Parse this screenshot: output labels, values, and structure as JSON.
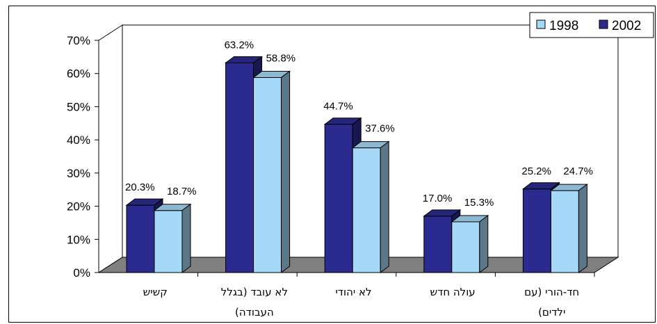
{
  "chart_data": {
    "type": "bar",
    "categories": [
      [
        "קשיש"
      ],
      [
        "לא עובד (בגלל",
        "העבודה)"
      ],
      [
        "לא יהודי"
      ],
      [
        "עולה חדש"
      ],
      [
        "חד-הורי (עם",
        "ילדים)"
      ]
    ],
    "series": [
      {
        "name": "2002",
        "color": "#2b2b8f",
        "values": [
          20.3,
          63.2,
          44.7,
          17.0,
          25.2
        ],
        "labels": [
          "20.3%",
          "63.2%",
          "44.7%",
          "17.0%",
          "25.2%"
        ]
      },
      {
        "name": "1998",
        "color": "#a6d8f7",
        "values": [
          18.7,
          58.8,
          37.6,
          15.3,
          24.7
        ],
        "labels": [
          "18.7%",
          "58.8%",
          "37.6%",
          "15.3%",
          "24.7%"
        ]
      }
    ],
    "yticks": [
      "0%",
      "10%",
      "20%",
      "30%",
      "40%",
      "50%",
      "60%",
      "70%"
    ],
    "ylim": [
      0,
      70
    ],
    "legend": {
      "position": "top-right",
      "items": [
        "1998",
        "2002"
      ]
    },
    "floor_color": "#808080",
    "grid": false
  }
}
